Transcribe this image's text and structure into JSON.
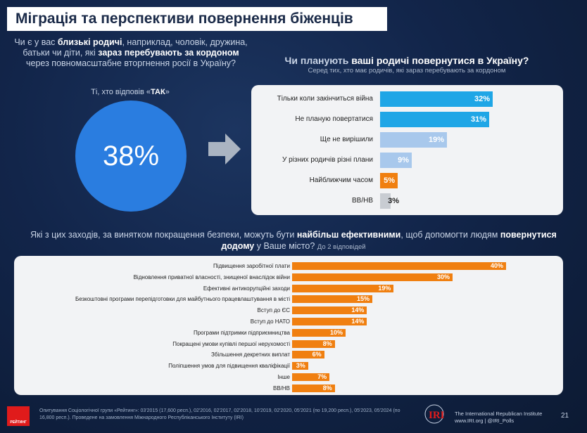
{
  "title": "Міграція та перспективи повернення біженців",
  "question1": {
    "p1": "Чи є у вас ",
    "b1": "близькі родичі",
    "p2": ", наприклад, чоловік, дружина, батьки чи діти, які ",
    "b2": "зараз перебувають за кордоном",
    "p3": " через повномасштабне вторгнення росії в Україну?"
  },
  "yes_label": {
    "prefix": "Ті, хто відповів «",
    "bold": "ТАК",
    "suffix": "»"
  },
  "circle_value": "38%",
  "question2": {
    "p1": "Чи планують ",
    "b1": "ваші родичі повернутися в Україну?",
    "sub": "Серед тих, хто має родичів, які зараз перебувають за кордоном"
  },
  "question3": {
    "p1": "Які з цих заходів, за винятком покращення безпеки, можуть бути ",
    "b1": "найбільш ефективними",
    "p2": ", щоб допомогти людям ",
    "b2": "повернутися додому",
    "p3": " у Ваше місто? ",
    "sub": "До 2 відповідей"
  },
  "chart_data": [
    {
      "type": "bar",
      "orientation": "horizontal",
      "categories": [
        "Тільки коли закінчиться війна",
        "Не планую повертатися",
        "Ще не вирішили",
        "У різних родичів різні плани",
        "Найближчим часом",
        "ВВ/НВ"
      ],
      "values": [
        32,
        31,
        19,
        9,
        5,
        3
      ],
      "value_labels": [
        "32%",
        "31%",
        "19%",
        "9%",
        "5%",
        "3%"
      ],
      "colors": [
        "#1fa6e6",
        "#1fa6e6",
        "#a8c8ec",
        "#a8c8ec",
        "#f07f10",
        "#c8ccd2"
      ],
      "xlim": [
        0,
        100
      ]
    },
    {
      "type": "bar",
      "orientation": "horizontal",
      "categories": [
        "Підвищення заробітної плати",
        "Відновлення приватної власності, знищеної внаслідок війни",
        "Ефективні антикорупційні заходи",
        "Безкоштовні програми перепідготовки для майбутнього працевлаштування в місті",
        "Вступ до ЄС",
        "Вступ до НАТО",
        "Програми підтримки підприємництва",
        "Покращені умови купівлі першої нерухомості",
        "Збільшення декретних виплат",
        "Поліпшення умов для підвищення кваліфікації",
        "Інше",
        "ВВ/НВ"
      ],
      "values": [
        40,
        30,
        19,
        15,
        14,
        14,
        10,
        8,
        6,
        3,
        7,
        8
      ],
      "value_labels": [
        "40%",
        "30%",
        "19%",
        "15%",
        "14%",
        "14%",
        "10%",
        "8%",
        "6%",
        "3%",
        "7%",
        "8%"
      ],
      "color": "#f07f10",
      "xlim": [
        0,
        100
      ]
    }
  ],
  "footer": "Опитування Соціологічної групи «Рейтинг»: 03'2015 (17,600 респ.), 02'2016, 02'2017, 02'2018, 10'2019, 02'2020, 05'2021 (по 19,200 респ.), 05'2023, 05'2024 (по 16,800 респ.). Проведене на замовлення Міжнародного Республіканського Інституту (IRI)",
  "logo_rating_text": "РЕЙТИНГ",
  "iri_logo_text": "IRI",
  "iri_line1": "The International Republican Institute",
  "iri_line2": "www.IRI.org | @IRI_Polls",
  "page_number": "21",
  "colors": {
    "blue_circle": "#2a7de0",
    "orange": "#f07f10",
    "dark_blue": "#1fa6e6",
    "light_blue": "#a8c8ec",
    "grey": "#c8ccd2",
    "background": "#12254a"
  }
}
